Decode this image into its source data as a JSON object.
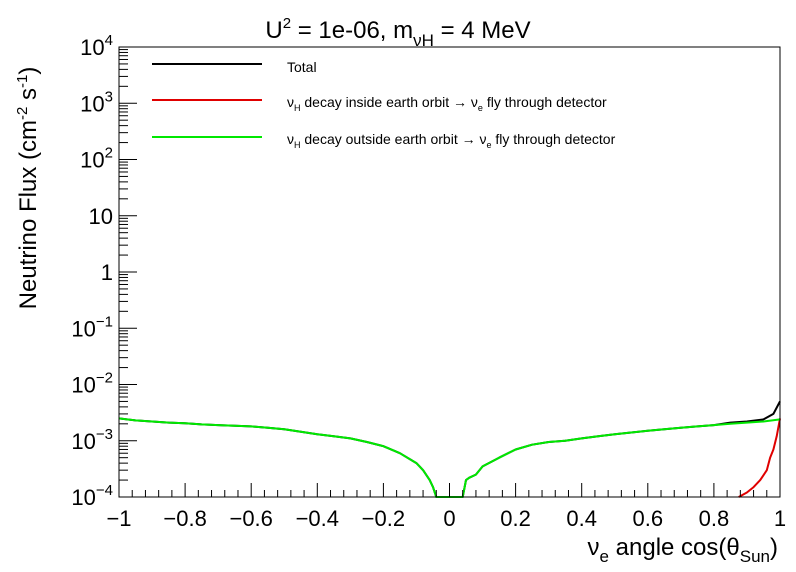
{
  "chart_data": {
    "type": "line",
    "title": {
      "pre": "U",
      "sup": "2",
      "mid": " = 1e-06, m",
      "sub": "νH",
      "post": " = 4 MeV"
    },
    "xlabel": {
      "pre": "ν",
      "sub1": "e",
      "mid": " angle cos(θ",
      "sub2": "Sun",
      "post": ")"
    },
    "ylabel": {
      "pre": "Neutrino Flux (cm",
      "sup1": "-2",
      "mid": " s",
      "sup2": "-1",
      "post": ")"
    },
    "xlim": [
      -1,
      1
    ],
    "ylim": [
      0.0001,
      10000
    ],
    "yscale": "log",
    "grid": false,
    "legend_position": "top-left",
    "x_ticks": [
      {
        "v": -1,
        "label": "−1"
      },
      {
        "v": -0.8,
        "label": "−0.8"
      },
      {
        "v": -0.6,
        "label": "−0.6"
      },
      {
        "v": -0.4,
        "label": "−0.4"
      },
      {
        "v": -0.2,
        "label": "−0.2"
      },
      {
        "v": 0,
        "label": "0"
      },
      {
        "v": 0.2,
        "label": "0.2"
      },
      {
        "v": 0.4,
        "label": "0.4"
      },
      {
        "v": 0.6,
        "label": "0.6"
      },
      {
        "v": 0.8,
        "label": "0.8"
      },
      {
        "v": 1,
        "label": "1"
      }
    ],
    "y_ticks": [
      {
        "v": 0.0001,
        "base": "10",
        "exp": "−4"
      },
      {
        "v": 0.001,
        "base": "10",
        "exp": "−3"
      },
      {
        "v": 0.01,
        "base": "10",
        "exp": "−2"
      },
      {
        "v": 0.1,
        "base": "10",
        "exp": "−1"
      },
      {
        "v": 1,
        "base": "1",
        "exp": ""
      },
      {
        "v": 10,
        "base": "10",
        "exp": ""
      },
      {
        "v": 100,
        "base": "10",
        "exp": "2"
      },
      {
        "v": 1000,
        "base": "10",
        "exp": "3"
      },
      {
        "v": 10000,
        "base": "10",
        "exp": "4"
      }
    ],
    "series": [
      {
        "name": {
          "pre": "Total"
        },
        "color": "#000000",
        "x": [
          -1.0,
          -0.95,
          -0.9,
          -0.85,
          -0.8,
          -0.75,
          -0.7,
          -0.65,
          -0.6,
          -0.55,
          -0.5,
          -0.45,
          -0.4,
          -0.35,
          -0.3,
          -0.25,
          -0.2,
          -0.15,
          -0.1,
          -0.08,
          -0.06,
          -0.05,
          -0.04,
          0.04,
          0.05,
          0.06,
          0.08,
          0.1,
          0.15,
          0.2,
          0.25,
          0.3,
          0.35,
          0.4,
          0.45,
          0.5,
          0.55,
          0.6,
          0.65,
          0.7,
          0.75,
          0.8,
          0.85,
          0.9,
          0.95,
          0.98,
          1.0
        ],
        "y": [
          0.0025,
          0.0023,
          0.0022,
          0.0021,
          0.00205,
          0.00195,
          0.0019,
          0.00185,
          0.0018,
          0.0017,
          0.0016,
          0.00145,
          0.0013,
          0.0012,
          0.0011,
          0.00095,
          0.0008,
          0.0006,
          0.0004,
          0.0003,
          0.0002,
          0.00015,
          0.0001,
          0.0001,
          0.0002,
          0.00022,
          0.00025,
          0.00035,
          0.0005,
          0.0007,
          0.00085,
          0.00095,
          0.001,
          0.0011,
          0.0012,
          0.0013,
          0.0014,
          0.0015,
          0.0016,
          0.0017,
          0.0018,
          0.0019,
          0.0021,
          0.0022,
          0.0024,
          0.003,
          0.005
        ]
      },
      {
        "name": {
          "pre": "ν",
          "sub1": "H",
          "mid": " decay inside earth orbit → ν",
          "sub2": "e",
          "post": " fly through detector"
        },
        "color": "#e00000",
        "x": [
          0.875,
          0.9,
          0.92,
          0.94,
          0.96,
          0.97,
          0.98,
          0.99,
          1.0
        ],
        "y": [
          0.0001,
          0.00012,
          0.00015,
          0.0002,
          0.0003,
          0.0005,
          0.0007,
          0.0012,
          0.0025
        ]
      },
      {
        "name": {
          "pre": "ν",
          "sub1": "H",
          "mid": " decay outside earth orbit → ν",
          "sub2": "e",
          "post": " fly through detector"
        },
        "color": "#00e800",
        "x": [
          -1.0,
          -0.95,
          -0.9,
          -0.85,
          -0.8,
          -0.75,
          -0.7,
          -0.65,
          -0.6,
          -0.55,
          -0.5,
          -0.45,
          -0.4,
          -0.35,
          -0.3,
          -0.25,
          -0.2,
          -0.15,
          -0.1,
          -0.08,
          -0.06,
          -0.05,
          -0.04,
          0.04,
          0.05,
          0.06,
          0.08,
          0.1,
          0.15,
          0.2,
          0.25,
          0.3,
          0.35,
          0.4,
          0.45,
          0.5,
          0.55,
          0.6,
          0.65,
          0.7,
          0.75,
          0.8,
          0.85,
          0.9,
          0.95,
          1.0
        ],
        "y": [
          0.0025,
          0.0023,
          0.0022,
          0.0021,
          0.00205,
          0.00195,
          0.0019,
          0.00185,
          0.0018,
          0.0017,
          0.0016,
          0.00145,
          0.0013,
          0.0012,
          0.0011,
          0.00095,
          0.0008,
          0.0006,
          0.0004,
          0.0003,
          0.0002,
          0.00015,
          0.0001,
          0.0001,
          0.0002,
          0.00022,
          0.00025,
          0.00035,
          0.0005,
          0.0007,
          0.00085,
          0.00095,
          0.001,
          0.0011,
          0.0012,
          0.0013,
          0.0014,
          0.0015,
          0.0016,
          0.0017,
          0.0018,
          0.0019,
          0.002,
          0.0021,
          0.0022,
          0.0024
        ]
      }
    ]
  }
}
